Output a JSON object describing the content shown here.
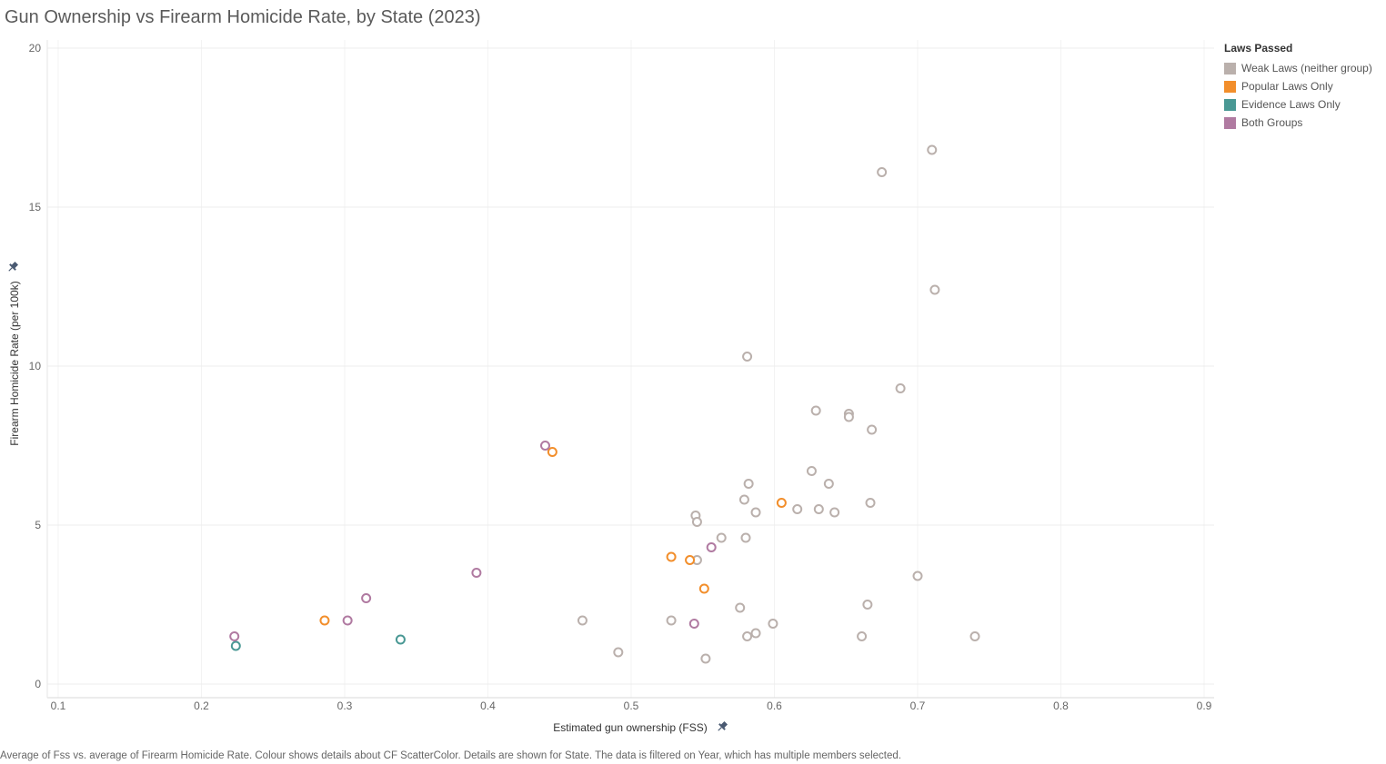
{
  "title": "Gun Ownership vs Firearm Homicide Rate, by State (2023)",
  "caption": "Average of Fss vs. average of Firearm Homicide Rate.  Colour shows details about CF ScatterColor.  Details are shown for State. The data is filtered on Year, which has multiple members selected.",
  "legend": {
    "title": "Laws Passed",
    "items": [
      {
        "label": "Weak Laws (neither group)",
        "color": "#bab0ac"
      },
      {
        "label": "Popular Laws Only",
        "color": "#f28e2b"
      },
      {
        "label": "Evidence Laws Only",
        "color": "#499894"
      },
      {
        "label": "Both Groups",
        "color": "#b07aa1"
      }
    ]
  },
  "chart_data": {
    "type": "scatter",
    "title": "Gun Ownership vs Firearm Homicide Rate, by State (2023)",
    "xlabel": "Estimated gun ownership (FSS)",
    "ylabel": "Firearm Homicide Rate (per 100k)",
    "xlim": [
      0.1,
      0.9
    ],
    "ylim": [
      0,
      20
    ],
    "xticks": [
      "0.1",
      "0.2",
      "0.3",
      "0.4",
      "0.5",
      "0.6",
      "0.7",
      "0.8",
      "0.9"
    ],
    "yticks": [
      "0",
      "5",
      "10",
      "15",
      "20"
    ],
    "grid": true,
    "marker": "hollow-circle",
    "legend_position": "right",
    "series": [
      {
        "name": "Weak Laws (neither group)",
        "color": "#bab0ac",
        "points": [
          {
            "x": 0.71,
            "y": 16.8
          },
          {
            "x": 0.675,
            "y": 16.1
          },
          {
            "x": 0.712,
            "y": 12.4
          },
          {
            "x": 0.581,
            "y": 10.3
          },
          {
            "x": 0.688,
            "y": 9.3
          },
          {
            "x": 0.629,
            "y": 8.6
          },
          {
            "x": 0.652,
            "y": 8.5
          },
          {
            "x": 0.652,
            "y": 8.4
          },
          {
            "x": 0.668,
            "y": 8.0
          },
          {
            "x": 0.626,
            "y": 6.7
          },
          {
            "x": 0.582,
            "y": 6.3
          },
          {
            "x": 0.638,
            "y": 6.3
          },
          {
            "x": 0.579,
            "y": 5.8
          },
          {
            "x": 0.667,
            "y": 5.7
          },
          {
            "x": 0.616,
            "y": 5.5
          },
          {
            "x": 0.631,
            "y": 5.5
          },
          {
            "x": 0.587,
            "y": 5.4
          },
          {
            "x": 0.642,
            "y": 5.4
          },
          {
            "x": 0.545,
            "y": 5.3
          },
          {
            "x": 0.546,
            "y": 5.1
          },
          {
            "x": 0.563,
            "y": 4.6
          },
          {
            "x": 0.58,
            "y": 4.6
          },
          {
            "x": 0.546,
            "y": 3.9
          },
          {
            "x": 0.7,
            "y": 3.4
          },
          {
            "x": 0.665,
            "y": 2.5
          },
          {
            "x": 0.576,
            "y": 2.4
          },
          {
            "x": 0.466,
            "y": 2.0
          },
          {
            "x": 0.528,
            "y": 2.0
          },
          {
            "x": 0.599,
            "y": 1.9
          },
          {
            "x": 0.587,
            "y": 1.6
          },
          {
            "x": 0.581,
            "y": 1.5
          },
          {
            "x": 0.661,
            "y": 1.5
          },
          {
            "x": 0.74,
            "y": 1.5
          },
          {
            "x": 0.491,
            "y": 1.0
          },
          {
            "x": 0.552,
            "y": 0.8
          }
        ]
      },
      {
        "name": "Popular Laws Only",
        "color": "#f28e2b",
        "points": [
          {
            "x": 0.445,
            "y": 7.3
          },
          {
            "x": 0.605,
            "y": 5.7
          },
          {
            "x": 0.528,
            "y": 4.0
          },
          {
            "x": 0.541,
            "y": 3.9
          },
          {
            "x": 0.551,
            "y": 3.0
          },
          {
            "x": 0.286,
            "y": 2.0
          }
        ]
      },
      {
        "name": "Evidence Laws Only",
        "color": "#499894",
        "points": [
          {
            "x": 0.339,
            "y": 1.4
          },
          {
            "x": 0.224,
            "y": 1.2
          }
        ]
      },
      {
        "name": "Both Groups",
        "color": "#b07aa1",
        "points": [
          {
            "x": 0.44,
            "y": 7.5
          },
          {
            "x": 0.556,
            "y": 4.3
          },
          {
            "x": 0.392,
            "y": 3.5
          },
          {
            "x": 0.315,
            "y": 2.7
          },
          {
            "x": 0.302,
            "y": 2.0
          },
          {
            "x": 0.544,
            "y": 1.9
          },
          {
            "x": 0.223,
            "y": 1.5
          }
        ]
      }
    ]
  }
}
